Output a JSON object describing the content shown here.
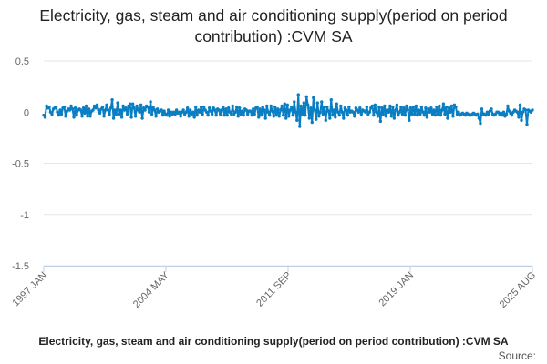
{
  "chart_data": {
    "type": "line",
    "title": "Electricity, gas, steam and air conditioning supply(period on period contribution) :CVM SA",
    "series": [
      {
        "name": "Electricity, gas, steam and air conditioning supply(period on period contribution) :CVM SA",
        "color": "#0a7ec2",
        "values": [
          -0.03,
          -0.05,
          0.06,
          0.04,
          0.05,
          0.0,
          -0.02,
          0.03,
          0.04,
          0.05,
          0.0,
          -0.03,
          0.02,
          -0.02,
          0.04,
          0.05,
          -0.04,
          0.01,
          0.03,
          0.02,
          0.06,
          0.03,
          -0.05,
          0.04,
          -0.03,
          0.02,
          0.03,
          0.02,
          -0.04,
          0.04,
          -0.01,
          0.06,
          -0.04,
          0.03,
          -0.04,
          0.01,
          0.02,
          0.06,
          0.04,
          0.07,
          0.02,
          -0.01,
          0.03,
          0.05,
          -0.04,
          0.02,
          0.07,
          0.02,
          -0.02,
          0.04,
          0.12,
          -0.06,
          0.02,
          -0.02,
          0.09,
          -0.02,
          0.02,
          -0.05,
          0.06,
          0.02,
          0.04,
          -0.02,
          0.06,
          0.08,
          -0.05,
          0.08,
          0.04,
          -0.04,
          0.06,
          0.02,
          0.0,
          0.07,
          -0.06,
          0.04,
          0.02,
          0.06,
          0.05,
          0.0,
          0.1,
          -0.02,
          0.05,
          0.02,
          -0.04,
          0.03,
          0.0,
          0.01,
          0.02,
          -0.03,
          0.01,
          -0.02,
          -0.03,
          0.02,
          -0.04,
          0.0,
          -0.02,
          0.0,
          -0.02,
          0.02,
          -0.01,
          0.0,
          -0.04,
          0.0,
          0.02,
          -0.02,
          0.0,
          0.04,
          -0.04,
          0.02,
          -0.02,
          0.0,
          -0.05,
          0.05,
          -0.03,
          0.02,
          0.0,
          0.05,
          -0.02,
          0.05,
          0.02,
          0.0,
          -0.03,
          0.04,
          0.01,
          -0.02,
          0.04,
          0.02,
          -0.03,
          0.03,
          0.02,
          -0.02,
          0.02,
          0.05,
          -0.03,
          0.03,
          -0.03,
          0.04,
          0.0,
          -0.02,
          0.06,
          -0.02,
          0.0,
          0.05,
          -0.04,
          0.04,
          -0.02,
          0.01,
          -0.03,
          0.03,
          0.02,
          -0.02,
          0.01,
          0.01,
          -0.03,
          0.03,
          -0.02,
          0.04,
          0.05,
          -0.05,
          0.03,
          -0.03,
          0.05,
          0.02,
          -0.06,
          0.06,
          0.0,
          -0.03,
          0.06,
          0.01,
          -0.04,
          0.05,
          -0.03,
          0.03,
          -0.04,
          0.02,
          0.06,
          -0.03,
          0.08,
          -0.06,
          0.07,
          -0.04,
          0.02,
          0.05,
          -0.03,
          0.1,
          0.0,
          -0.08,
          0.17,
          -0.14,
          0.06,
          -0.02,
          0.09,
          -0.03,
          0.15,
          0.07,
          -0.06,
          0.04,
          -0.1,
          0.14,
          0.02,
          -0.07,
          0.09,
          -0.04,
          0.0,
          0.1,
          -0.02,
          0.05,
          -0.08,
          0.05,
          0.01,
          -0.06,
          0.12,
          -0.03,
          0.02,
          -0.05,
          0.08,
          0.0,
          -0.03,
          0.06,
          0.0,
          -0.06,
          0.04,
          0.02,
          -0.03,
          0.05,
          0.0,
          0.01,
          0.0,
          -0.04,
          0.04,
          0.02,
          0.0,
          0.04,
          -0.02,
          0.02,
          0.01,
          0.0,
          0.05,
          -0.02,
          0.0,
          0.04,
          0.06,
          -0.03,
          0.07,
          0.0,
          -0.04,
          0.05,
          -0.09,
          0.04,
          -0.02,
          0.06,
          -0.04,
          0.02,
          0.0,
          0.06,
          -0.04,
          0.05,
          -0.06,
          0.02,
          0.07,
          -0.03,
          0.0,
          0.05,
          -0.02,
          0.04,
          -0.03,
          0.06,
          0.02,
          -0.08,
          0.04,
          -0.02,
          0.05,
          -0.02,
          0.06,
          -0.03,
          0.02,
          -0.02,
          0.05,
          0.0,
          -0.03,
          0.04,
          -0.05,
          0.03,
          0.0,
          0.04,
          -0.02,
          0.02,
          -0.03,
          0.05,
          -0.02,
          0.06,
          -0.03,
          0.02,
          0.08,
          -0.02,
          0.05,
          -0.06,
          0.04,
          0.0,
          0.06,
          -0.04,
          0.07,
          0.05,
          -0.02,
          0.0,
          -0.03,
          -0.02,
          -0.01,
          -0.02,
          -0.03,
          -0.01,
          -0.02,
          -0.03,
          -0.03,
          -0.02,
          -0.01,
          -0.02,
          -0.03,
          -0.02,
          -0.06,
          -0.11,
          0.03,
          -0.02,
          -0.02,
          -0.03,
          0.0,
          -0.02,
          0.01,
          0.03,
          -0.02,
          -0.03,
          -0.02,
          0.0,
          0.0,
          -0.02,
          -0.01,
          -0.03,
          0.0,
          -0.04,
          -0.02,
          0.06,
          0.01,
          -0.01,
          -0.03,
          0.0,
          0.02,
          0.01,
          0.0,
          -0.05,
          0.07,
          -0.08,
          0.0,
          0.03,
          0.02,
          -0.12,
          0.02,
          0.01,
          0.0,
          0.02
        ]
      }
    ],
    "x_tick_labels": [
      "1997 JAN",
      "2004 MAY",
      "2011 SEP",
      "2019 JAN",
      "2025 AUG"
    ],
    "y_tick_labels": [
      "0.5",
      "0",
      "-0.5",
      "-1",
      "-1.5"
    ],
    "y_ticks": [
      0.5,
      0,
      -0.5,
      -1,
      -1.5
    ],
    "ylim": [
      -1.5,
      0.5
    ],
    "grid": "horizontal",
    "xlabel": "",
    "ylabel": "",
    "source_label": "Source:"
  }
}
